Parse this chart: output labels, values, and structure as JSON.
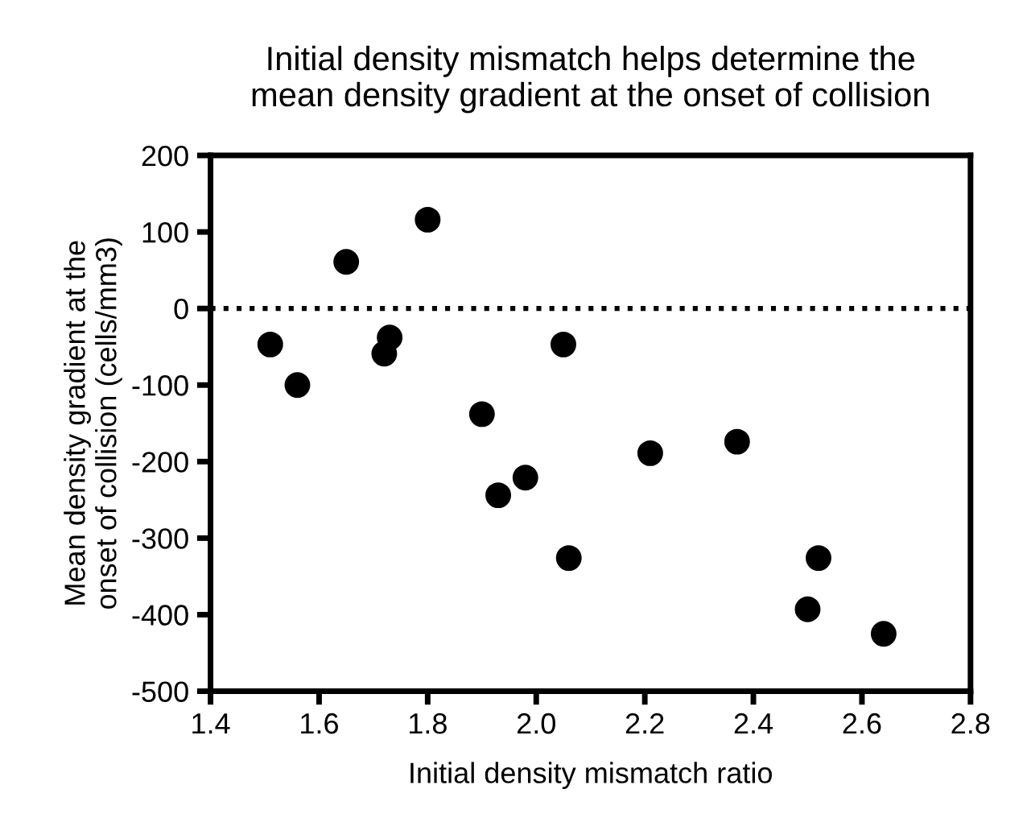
{
  "chart_data": {
    "type": "scatter",
    "title": "Initial density mismatch helps determine the\nmean density gradient at the onset of collision",
    "xlabel": "Initial density mismatch ratio",
    "ylabel": "Mean density gradient at the\nonset of collision (cells/mm3)",
    "x": [
      1.51,
      1.56,
      1.65,
      1.73,
      1.72,
      1.8,
      1.9,
      1.93,
      1.98,
      2.05,
      2.06,
      2.21,
      2.37,
      2.52,
      2.5,
      2.64
    ],
    "values": [
      -47,
      -100,
      61,
      -38,
      -59,
      116,
      -138,
      -244,
      -221,
      -47,
      -326,
      -189,
      -174,
      -326,
      -393,
      -425
    ],
    "color": "#000000",
    "marker": "circle",
    "xlim": [
      1.4,
      2.8
    ],
    "xticks": [
      1.4,
      1.6,
      1.8,
      {
        "value": 2,
        "label": "2.0"
      },
      2.2,
      2.4,
      2.6,
      2.8
    ],
    "ylim": [
      -500,
      200
    ],
    "yticks": [
      -500,
      -400,
      -300,
      -200,
      -100,
      0,
      100,
      200
    ],
    "ref_lines": [
      {
        "axis": "y",
        "value": 0,
        "line_style": "dotted",
        "color": "#000000"
      }
    ],
    "grid": false,
    "legend": false
  }
}
